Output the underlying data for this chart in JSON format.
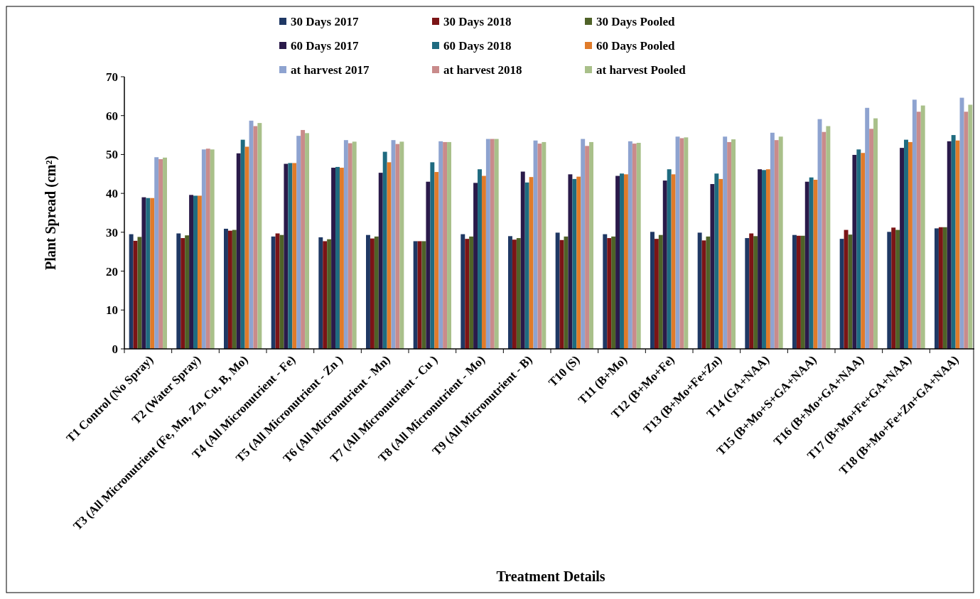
{
  "chart_data": {
    "type": "bar",
    "xlabel": "Treatment Details",
    "ylabel": "Plant Spread (cm²)",
    "ylim": [
      0,
      70
    ],
    "yticks": [
      0,
      10,
      20,
      30,
      40,
      50,
      60,
      70
    ],
    "grid": false,
    "legend": "top",
    "categories": [
      "T1 Control (No Spray)",
      "T2 (Water Spray)",
      "T3 (All Micronutrient (Fe, Mn, Zn, Cu, B, Mo)",
      "T4 (All Micronutrient - Fe)",
      "T5 (All Micronutrient - Zn )",
      "T6 (All Micronutrient - Mn)",
      "T7 (All Micronutrient - Cu )",
      "T8 (All Micronutrient - Mo)",
      "T9 (All Micronutrient - B)",
      "T10 (S)",
      "T11 (B+Mo)",
      "T12 (B+Mo+Fe)",
      "T13 (B+Mo+Fe+Zn)",
      "T14 (GA+NAA)",
      "T15 (B+Mo+S+GA+NAA)",
      "T16 (B+Mo+GA+NAA)",
      "T17 (B+Mo+Fe+GA+NAA)",
      "T18 (B+Mo+Fe+Zn+GA+NAA)"
    ],
    "series": [
      {
        "name": "30 Days 2017",
        "color": "#1f3864",
        "values": [
          29.5,
          29.7,
          30.9,
          28.9,
          28.7,
          29.3,
          27.7,
          29.5,
          29.0,
          29.9,
          29.5,
          30.1,
          29.9,
          28.5,
          29.3,
          28.3,
          30.1,
          31.0
        ]
      },
      {
        "name": "30 Days 2018",
        "color": "#7b1416",
        "values": [
          27.8,
          28.5,
          30.4,
          29.7,
          27.7,
          28.4,
          27.7,
          28.3,
          28.1,
          28.0,
          28.5,
          28.3,
          27.9,
          29.7,
          29.1,
          30.6,
          31.2,
          31.3
        ]
      },
      {
        "name": "30 Days Pooled",
        "color": "#4f6228",
        "values": [
          28.8,
          29.2,
          30.6,
          29.3,
          28.2,
          28.9,
          27.7,
          28.9,
          28.5,
          28.9,
          28.9,
          29.3,
          28.9,
          29.0,
          29.1,
          29.4,
          30.6,
          31.3
        ]
      },
      {
        "name": "60 Days 2017",
        "color": "#2a1a4a",
        "values": [
          39.0,
          39.6,
          50.3,
          47.6,
          46.6,
          45.3,
          43.0,
          42.7,
          45.6,
          44.9,
          44.5,
          43.3,
          42.4,
          46.2,
          43.0,
          49.9,
          51.7,
          53.4
        ]
      },
      {
        "name": "60 Days 2018",
        "color": "#1f6b80",
        "values": [
          38.8,
          39.4,
          53.8,
          47.8,
          46.8,
          50.7,
          48.0,
          46.2,
          42.8,
          43.7,
          45.1,
          46.2,
          45.1,
          46.0,
          44.1,
          51.3,
          53.8,
          55.0
        ]
      },
      {
        "name": "60 Days Pooled",
        "color": "#e07b2a",
        "values": [
          38.8,
          39.4,
          52.0,
          47.8,
          46.6,
          48.0,
          45.5,
          44.5,
          44.2,
          44.3,
          44.9,
          44.9,
          43.7,
          46.2,
          43.5,
          50.4,
          53.2,
          53.6
        ]
      },
      {
        "name": "at harvest 2017",
        "color": "#8ea3d0",
        "values": [
          49.3,
          51.3,
          58.7,
          54.8,
          53.7,
          53.7,
          53.4,
          54.0,
          53.6,
          54.0,
          53.4,
          54.6,
          54.6,
          55.6,
          59.1,
          62.0,
          64.1,
          64.6
        ]
      },
      {
        "name": "at harvest 2018",
        "color": "#c98b8b",
        "values": [
          48.8,
          51.5,
          57.3,
          56.3,
          52.9,
          52.7,
          53.2,
          54.0,
          52.8,
          52.2,
          52.8,
          54.2,
          53.2,
          53.7,
          55.8,
          56.6,
          61.0,
          61.0
        ]
      },
      {
        "name": "at harvest Pooled",
        "color": "#a9c08a",
        "values": [
          49.2,
          51.3,
          58.1,
          55.5,
          53.3,
          53.3,
          53.2,
          54.0,
          53.2,
          53.2,
          53.0,
          54.4,
          53.9,
          54.6,
          57.3,
          59.3,
          62.6,
          62.8
        ]
      }
    ]
  }
}
